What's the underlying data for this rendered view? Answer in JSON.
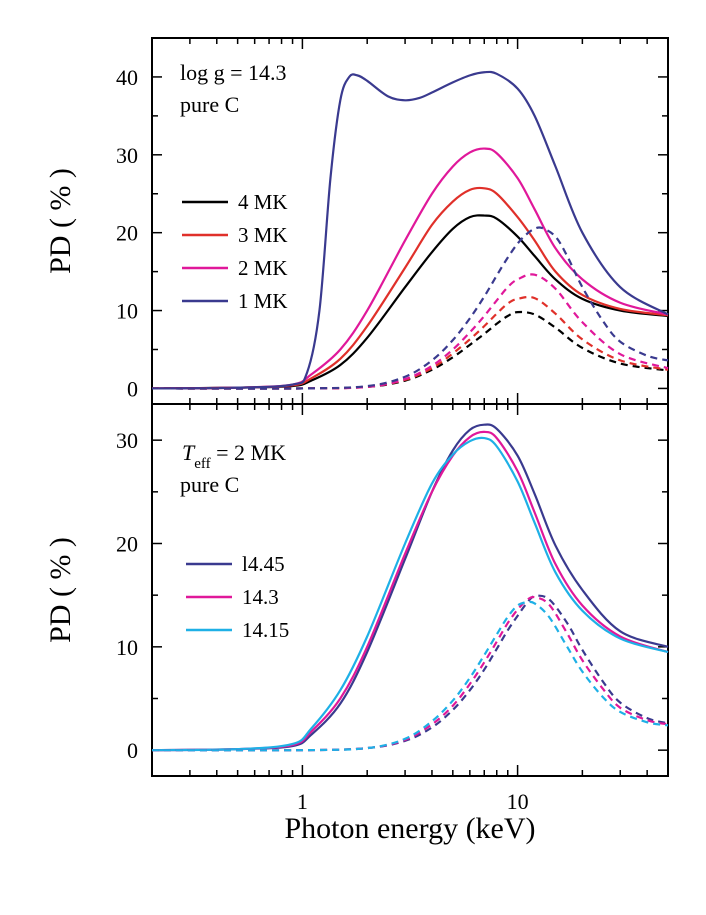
{
  "chart_data": [
    {
      "type": "line",
      "panel": "top",
      "xlabel": "Photon energy (keV)",
      "ylabel": "PD ( % )",
      "xscale": "log",
      "xlim": [
        0.2,
        50
      ],
      "ylim": [
        -2,
        45
      ],
      "yticks": [
        0,
        10,
        20,
        30,
        40
      ],
      "annotation": [
        "log g = 14.3",
        "pure C"
      ],
      "legend_position": "left",
      "series": [
        {
          "name": "4 MK",
          "color": "#000000",
          "style": "solid",
          "x": [
            0.2,
            0.5,
            0.9,
            1.1,
            1.5,
            2,
            3,
            4,
            5,
            6,
            7,
            8,
            10,
            12,
            15,
            20,
            30,
            50
          ],
          "y": [
            0,
            0.1,
            0.3,
            1,
            3,
            6.5,
            13,
            17.5,
            20.5,
            22,
            22.2,
            21.8,
            19.5,
            17,
            14,
            11.5,
            10,
            9.3
          ]
        },
        {
          "name": "3 MK",
          "color": "#e0302a",
          "style": "solid",
          "x": [
            0.2,
            0.5,
            0.9,
            1.1,
            1.5,
            2,
            3,
            4,
            5,
            6,
            7,
            8,
            10,
            12,
            15,
            20,
            30,
            50
          ],
          "y": [
            0,
            0.1,
            0.4,
            1.3,
            3.8,
            8,
            15.5,
            21,
            24,
            25.5,
            25.7,
            25,
            22,
            19,
            15,
            12,
            10.2,
            9.4
          ]
        },
        {
          "name": "2 MK",
          "color": "#e0189a",
          "style": "solid",
          "x": [
            0.2,
            0.5,
            0.9,
            1.1,
            1.5,
            2,
            3,
            4,
            5,
            6,
            7,
            8,
            10,
            12,
            15,
            20,
            30,
            50
          ],
          "y": [
            0,
            0.1,
            0.5,
            1.8,
            5,
            10,
            19,
            25,
            28.5,
            30.3,
            30.8,
            30.2,
            27,
            23,
            18,
            14,
            11,
            9.5
          ]
        },
        {
          "name": "1 MK",
          "color": "#3a3a8f",
          "style": "solid",
          "x": [
            0.2,
            0.5,
            0.9,
            1.05,
            1.2,
            1.35,
            1.5,
            1.65,
            1.8,
            2,
            2.5,
            3,
            3.5,
            4,
            5,
            6,
            7,
            8,
            10,
            12,
            15,
            20,
            30,
            50
          ],
          "y": [
            0,
            0.1,
            0.5,
            2,
            10,
            27,
            37,
            40,
            40.2,
            39.5,
            37.5,
            37,
            37.3,
            38,
            39.3,
            40.2,
            40.6,
            40.4,
            38.5,
            35,
            28.5,
            20,
            13,
            9.5
          ]
        },
        {
          "name": "4 MK dashed",
          "color": "#000000",
          "style": "dashed",
          "x": [
            0.2,
            1,
            2,
            3,
            4,
            5,
            6,
            7,
            8,
            9,
            10,
            12,
            15,
            20,
            30,
            50
          ],
          "y": [
            0,
            0,
            0.2,
            1,
            2.4,
            4,
            5.6,
            7,
            8.3,
            9.3,
            9.8,
            9.5,
            7.8,
            5.2,
            3.2,
            2.3
          ]
        },
        {
          "name": "3 MK dashed",
          "color": "#e0302a",
          "style": "dashed",
          "x": [
            0.2,
            1,
            2,
            3,
            4,
            5,
            6,
            7,
            8,
            9,
            10,
            12,
            15,
            20,
            30,
            50
          ],
          "y": [
            0,
            0,
            0.2,
            1.1,
            2.6,
            4.5,
            6.3,
            8,
            9.6,
            10.9,
            11.5,
            11.6,
            9.6,
            6.3,
            3.6,
            2.4
          ]
        },
        {
          "name": "2 MK dashed",
          "color": "#e0189a",
          "style": "dashed",
          "x": [
            0.2,
            1,
            2,
            3,
            4,
            5,
            6,
            7,
            8,
            9,
            10,
            12,
            15,
            20,
            30,
            50
          ],
          "y": [
            0,
            0,
            0.2,
            1.2,
            2.9,
            5,
            7.2,
            9.3,
            11.3,
            13,
            14,
            14.6,
            12.8,
            8.5,
            4.4,
            2.6
          ]
        },
        {
          "name": "1 MK dashed",
          "color": "#3a3a8f",
          "style": "dashed",
          "x": [
            0.2,
            1,
            2,
            3,
            4,
            5,
            6,
            7,
            8,
            9,
            10,
            11,
            12,
            13,
            15,
            17,
            20,
            25,
            30,
            40,
            50
          ],
          "y": [
            0,
            0,
            0.3,
            1.5,
            3.6,
            6.2,
            9,
            11.8,
            14.5,
            16.8,
            18.6,
            19.8,
            20.5,
            20.6,
            19.5,
            17,
            13,
            8.6,
            6,
            4.2,
            3.6
          ]
        }
      ]
    },
    {
      "type": "line",
      "panel": "bottom",
      "xlabel": "Photon energy (keV)",
      "ylabel": "PD ( % )",
      "xscale": "log",
      "xlim": [
        0.2,
        50
      ],
      "ylim": [
        -2.5,
        33.5
      ],
      "yticks": [
        0,
        10,
        20,
        30
      ],
      "xticks": [
        1,
        10
      ],
      "annotation": [
        "T",
        "eff",
        " = 2 MK",
        "pure C"
      ],
      "legend_position": "left",
      "series": [
        {
          "name": "l4.45",
          "color": "#3a3a8f",
          "style": "solid",
          "x": [
            0.2,
            0.5,
            0.9,
            1.1,
            1.5,
            2,
            3,
            4,
            5,
            6,
            7,
            8,
            10,
            12,
            15,
            20,
            30,
            50
          ],
          "y": [
            0,
            0.1,
            0.4,
            1.5,
            4.5,
            9.5,
            18.5,
            25,
            29,
            31,
            31.5,
            31.1,
            28.5,
            24.8,
            19.8,
            15.5,
            11.5,
            10
          ]
        },
        {
          "name": "14.3",
          "color": "#e0189a",
          "style": "solid",
          "x": [
            0.2,
            0.5,
            0.9,
            1.1,
            1.5,
            2,
            3,
            4,
            5,
            6,
            7,
            8,
            10,
            12,
            15,
            20,
            30,
            50
          ],
          "y": [
            0,
            0.1,
            0.5,
            1.8,
            5,
            10,
            19,
            25,
            28.5,
            30.3,
            30.8,
            30.2,
            27,
            23,
            18,
            14,
            11,
            9.5
          ]
        },
        {
          "name": "14.15",
          "color": "#1eb0e6",
          "style": "solid",
          "x": [
            0.2,
            0.5,
            0.9,
            1.1,
            1.5,
            2,
            3,
            4,
            5,
            6,
            7,
            8,
            10,
            12,
            15,
            20,
            30,
            50
          ],
          "y": [
            0,
            0.1,
            0.6,
            2.1,
            5.8,
            11,
            20,
            25.8,
            28.6,
            29.9,
            30.2,
            29.4,
            26,
            22,
            17.2,
            13.5,
            10.8,
            9.5
          ]
        },
        {
          "name": "l4.45 dashed",
          "color": "#3a3a8f",
          "style": "dashed",
          "x": [
            0.2,
            1,
            2,
            3,
            4,
            5,
            6,
            7,
            8,
            9,
            10,
            11,
            12,
            14,
            17,
            20,
            25,
            30,
            40,
            50
          ],
          "y": [
            0,
            0,
            0.2,
            0.9,
            2.2,
            3.9,
            5.8,
            7.8,
            9.8,
            11.6,
            13,
            14.2,
            14.9,
            14.6,
            12.3,
            9.7,
            6.6,
            4.6,
            3.1,
            2.6
          ]
        },
        {
          "name": "14.3 dashed",
          "color": "#e0189a",
          "style": "dashed",
          "x": [
            0.2,
            1,
            2,
            3,
            4,
            5,
            6,
            7,
            8,
            9,
            10,
            11,
            12,
            14,
            17,
            20,
            25,
            30,
            40,
            50
          ],
          "y": [
            0,
            0,
            0.2,
            1,
            2.5,
            4.3,
            6.4,
            8.5,
            10.5,
            12.3,
            13.6,
            14.5,
            14.8,
            14.1,
            11.3,
            8.7,
            5.9,
            4.1,
            2.9,
            2.5
          ]
        },
        {
          "name": "14.15 dashed",
          "color": "#1eb0e6",
          "style": "dashed",
          "x": [
            0.2,
            1,
            2,
            3,
            4,
            5,
            6,
            7,
            8,
            9,
            10,
            11,
            12,
            14,
            17,
            20,
            25,
            30,
            40,
            50
          ],
          "y": [
            0,
            0,
            0.2,
            1.1,
            2.8,
            4.8,
            7,
            9.2,
            11.2,
            12.9,
            14,
            14.3,
            14.2,
            12.9,
            10,
            7.6,
            5.1,
            3.7,
            2.7,
            2.4
          ]
        }
      ]
    }
  ]
}
